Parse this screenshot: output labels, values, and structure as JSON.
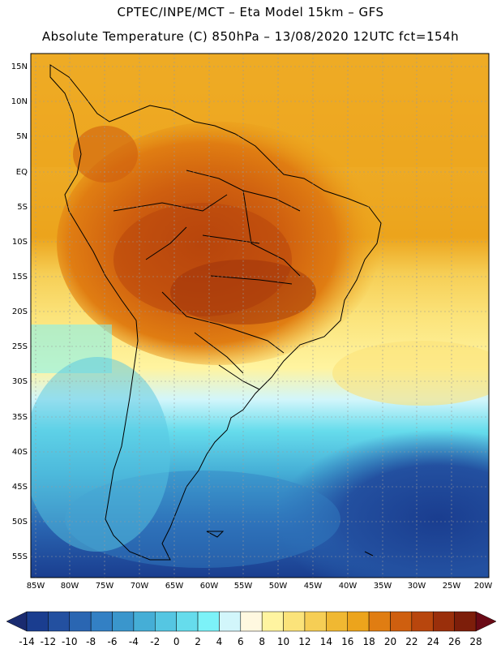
{
  "header": {
    "line1": "CPTEC/INPE/MCT –  Eta Model 15km – GFS",
    "line2": "Absolute Temperature (C) 850hPa – 13/08/2020 12UTC fct=154h"
  },
  "map": {
    "lat_labels": [
      "15N",
      "10N",
      "5N",
      "EQ",
      "5S",
      "10S",
      "15S",
      "20S",
      "25S",
      "30S",
      "35S",
      "40S",
      "45S",
      "50S",
      "55S"
    ],
    "lon_labels": [
      "85W",
      "80W",
      "75W",
      "70W",
      "65W",
      "60W",
      "55W",
      "50W",
      "45W",
      "40W",
      "35W",
      "30W",
      "25W",
      "20W"
    ]
  },
  "colorbar": {
    "labels": [
      "-14",
      "-12",
      "-10",
      "-8",
      "-6",
      "-4",
      "-2",
      "0",
      "2",
      "4",
      "6",
      "8",
      "10",
      "12",
      "14",
      "16",
      "18",
      "20",
      "22",
      "24",
      "26",
      "28"
    ],
    "colors": [
      "#1a3d8f",
      "#2350a0",
      "#2a66b2",
      "#3380c4",
      "#3a96cc",
      "#45aed6",
      "#55c6e2",
      "#66dcec",
      "#7cf2f8",
      "#d2f6fb",
      "#fff8e0",
      "#fff4a0",
      "#fbe37a",
      "#f6ce55",
      "#f0b832",
      "#eca41c",
      "#e07d12",
      "#cf5f0f",
      "#b8460d",
      "#9a2f0b",
      "#7d1e0a"
    ],
    "low_color": "#1a2b70",
    "high_color": "#6a0a16"
  }
}
